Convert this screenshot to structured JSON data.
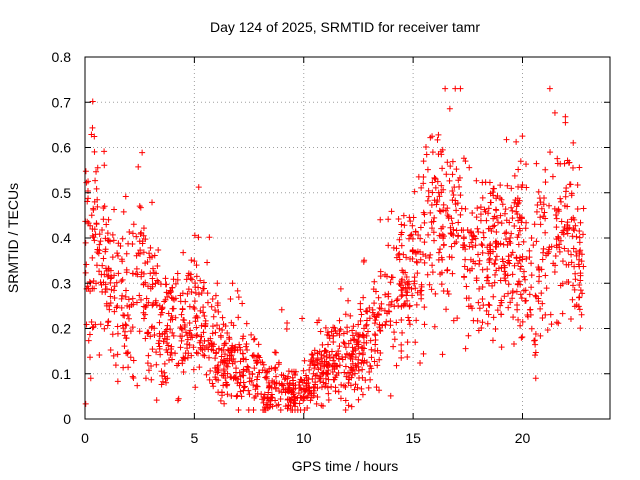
{
  "chart_data": {
    "type": "scatter",
    "title": "Day 124 of 2025, SRMTID for receiver tamr",
    "xlabel": "GPS time / hours",
    "ylabel": "SRMTID / TECUs",
    "xlim": [
      0,
      24
    ],
    "ylim": [
      0,
      0.8
    ],
    "xticks": [
      0,
      5,
      10,
      15,
      20
    ],
    "yticks": [
      0,
      0.1,
      0.2,
      0.3,
      0.4,
      0.5,
      0.6,
      0.7,
      0.8
    ],
    "grid": true,
    "marker": "+",
    "color": "#ff0000",
    "series": [
      {
        "name": "SRMTID",
        "trend": {
          "x": [
            0,
            0.5,
            1,
            1.5,
            2,
            2.5,
            3,
            3.5,
            4,
            4.5,
            5,
            5.5,
            6,
            6.5,
            7,
            7.5,
            8,
            8.5,
            9,
            9.5,
            10,
            10.5,
            11,
            11.5,
            12,
            12.5,
            13,
            13.5,
            14,
            14.5,
            15,
            15.5,
            16,
            16.5,
            17,
            17.5,
            18,
            18.5,
            19,
            19.5,
            20,
            20.5,
            21,
            21.5,
            22,
            22.5,
            22.8
          ],
          "y": [
            0.3,
            0.42,
            0.32,
            0.28,
            0.25,
            0.32,
            0.26,
            0.2,
            0.22,
            0.2,
            0.23,
            0.2,
            0.15,
            0.13,
            0.12,
            0.1,
            0.09,
            0.07,
            0.06,
            0.06,
            0.06,
            0.1,
            0.12,
            0.13,
            0.12,
            0.14,
            0.18,
            0.23,
            0.27,
            0.3,
            0.34,
            0.38,
            0.44,
            0.42,
            0.46,
            0.38,
            0.37,
            0.35,
            0.35,
            0.37,
            0.38,
            0.33,
            0.38,
            0.42,
            0.43,
            0.35,
            0.32
          ]
        },
        "spread": {
          "x": [
            0,
            1,
            2,
            3,
            4,
            5,
            6,
            7,
            8,
            9,
            10,
            11,
            12,
            13,
            14,
            15,
            16,
            17,
            18,
            19,
            20,
            21,
            22,
            22.8
          ],
          "y": [
            0.15,
            0.12,
            0.1,
            0.1,
            0.07,
            0.07,
            0.06,
            0.05,
            0.04,
            0.03,
            0.03,
            0.05,
            0.05,
            0.06,
            0.08,
            0.1,
            0.12,
            0.12,
            0.1,
            0.1,
            0.12,
            0.15,
            0.12,
            0.1
          ]
        }
      }
    ]
  }
}
